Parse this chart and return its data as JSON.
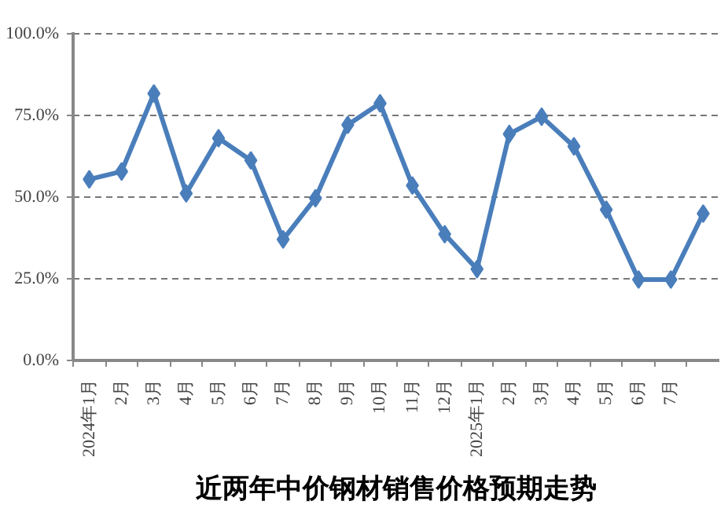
{
  "chart_data": {
    "type": "line",
    "title": "近两年中价钢材销售价格预期走势",
    "categories": [
      "2024年1月",
      "2月",
      "3月",
      "4月",
      "5月",
      "6月",
      "7月",
      "8月",
      "9月",
      "10月",
      "11月",
      "12月",
      "2025年1月",
      "2月",
      "3月",
      "4月",
      "5月",
      "6月",
      "7月",
      null
    ],
    "series": [
      {
        "color": "#4a7ebb",
        "values": [
          55.5,
          57.9,
          81.8,
          51.2,
          68.1,
          61.3,
          37.1,
          49.7,
          72.2,
          78.8,
          53.6,
          38.7,
          28.0,
          69.4,
          74.7,
          65.6,
          46.2,
          24.8,
          24.8,
          45
        ]
      }
    ],
    "ylim": [
      0,
      100
    ],
    "yticks": [
      {
        "value": 0,
        "label": "0.0%"
      },
      {
        "value": 25,
        "label": "25.0%"
      },
      {
        "value": 50,
        "label": "50.0%"
      },
      {
        "value": 75,
        "label": "75.0%"
      },
      {
        "value": 100,
        "label": "100.0%"
      }
    ],
    "grid": "y",
    "marker": "diamond",
    "line_style": "solid"
  }
}
